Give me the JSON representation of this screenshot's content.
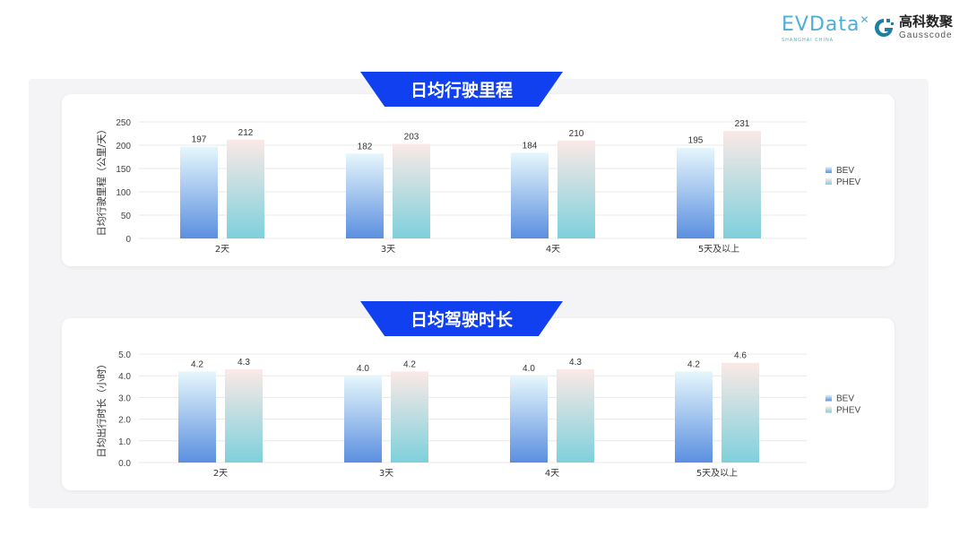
{
  "logos": {
    "evdata": "EVData",
    "evdata_sub": "SHANGHAI CHINA",
    "gauss_cn": "高科数聚",
    "gauss_en": "Gausscode"
  },
  "colors": {
    "banner": "#1040f0",
    "bev_top": "#e6f7fc",
    "bev_bottom": "#5b8fe0",
    "phev_top": "#fbe9e6",
    "phev_bottom": "#7ed0dc"
  },
  "chart_data": [
    {
      "type": "bar",
      "title": "日均行驶里程",
      "ylabel": "日均行驶里程（公里/天）",
      "categories": [
        "2天",
        "3天",
        "4天",
        "5天及以上"
      ],
      "yticks": [
        "0",
        "50",
        "100",
        "150",
        "200",
        "250"
      ],
      "ylim": [
        0,
        250
      ],
      "grid": true,
      "legend": "right",
      "series": [
        {
          "name": "BEV",
          "values": [
            197,
            182,
            184,
            195
          ],
          "labels": [
            "197",
            "182",
            "184",
            "195"
          ]
        },
        {
          "name": "PHEV",
          "values": [
            212,
            203,
            210,
            231
          ],
          "labels": [
            "212",
            "203",
            "210",
            "231"
          ]
        }
      ]
    },
    {
      "type": "bar",
      "title": "日均驾驶时长",
      "ylabel": "日均出行时长（小时）",
      "categories": [
        "2天",
        "3天",
        "4天",
        "5天及以上"
      ],
      "yticks": [
        "0.0",
        "1.0",
        "2.0",
        "3.0",
        "4.0",
        "5.0"
      ],
      "ylim": [
        0,
        5
      ],
      "grid": true,
      "legend": "right",
      "series": [
        {
          "name": "BEV",
          "values": [
            4.2,
            4.0,
            4.0,
            4.2
          ],
          "labels": [
            "4.2",
            "4.0",
            "4.0",
            "4.2"
          ]
        },
        {
          "name": "PHEV",
          "values": [
            4.3,
            4.2,
            4.3,
            4.6
          ],
          "labels": [
            "4.3",
            "4.2",
            "4.3",
            "4.6"
          ]
        }
      ]
    }
  ]
}
